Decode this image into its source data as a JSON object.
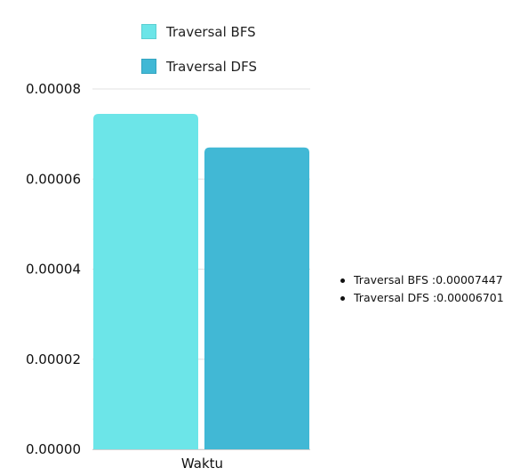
{
  "chart_data": {
    "type": "bar",
    "categories": [
      "Waktu"
    ],
    "series": [
      {
        "name": "Traversal BFS",
        "values": [
          7.447e-05
        ],
        "color": "#6ce5e8"
      },
      {
        "name": "Traversal DFS",
        "values": [
          6.701e-05
        ],
        "color": "#41b8d5"
      }
    ],
    "y_ticks": [
      "0.00000",
      "0.00002",
      "0.00004",
      "0.00006",
      "0.00008"
    ],
    "ylim": [
      0,
      8e-05
    ],
    "grid": true,
    "legend": "top"
  },
  "side_list": [
    "Traversal BFS :0.00007447",
    "Traversal DFS :0.00006701"
  ]
}
